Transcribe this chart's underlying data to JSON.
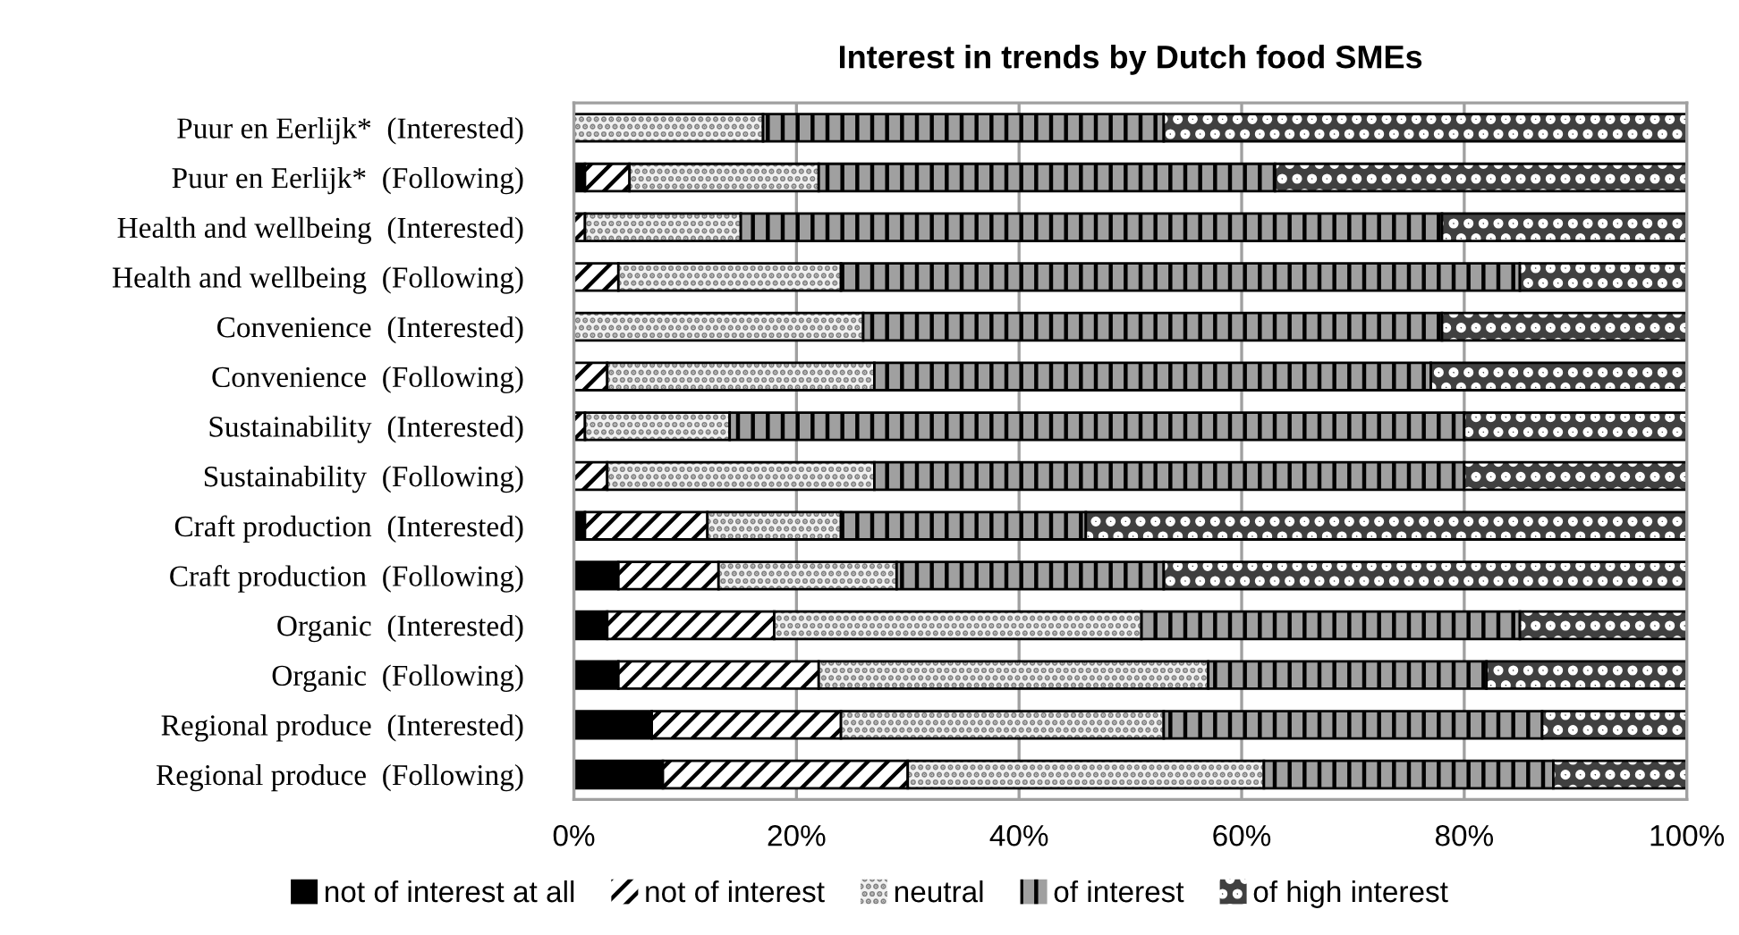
{
  "chart_data": {
    "type": "bar",
    "orientation": "horizontal",
    "stacked": true,
    "title": "Interest in trends by Dutch food SMEs",
    "categories": [
      "Puur en Eerlijk*  (Interested)",
      "Puur en Eerlijk*  (Following)",
      "Health and wellbeing  (Interested)",
      "Health and wellbeing  (Following)",
      "Convenience  (Interested)",
      "Convenience  (Following)",
      "Sustainability  (Interested)",
      "Sustainability  (Following)",
      "Craft production  (Interested)",
      "Craft production  (Following)",
      "Organic  (Interested)",
      "Organic  (Following)",
      "Regional produce  (Interested)",
      "Regional produce  (Following)"
    ],
    "series": [
      {
        "name": "not of interest at all",
        "color": "#000000",
        "values": [
          0,
          1,
          0,
          0,
          0,
          0,
          0,
          0,
          1,
          4,
          3,
          4,
          7,
          8
        ]
      },
      {
        "name": "not of interest",
        "color": "#ffffff",
        "values": [
          0,
          4,
          1,
          4,
          0,
          3,
          1,
          3,
          11,
          9,
          15,
          18,
          17,
          22
        ]
      },
      {
        "name": "neutral",
        "color": "#f0f0f0",
        "values": [
          17,
          17,
          14,
          20,
          26,
          24,
          13,
          24,
          12,
          16,
          33,
          35,
          29,
          32
        ]
      },
      {
        "name": "of interest",
        "color": "#a0a0a0",
        "values": [
          36,
          41,
          63,
          61,
          52,
          50,
          66,
          53,
          22,
          24,
          34,
          25,
          34,
          26
        ]
      },
      {
        "name": "of high interest",
        "color": "#404040",
        "values": [
          47,
          37,
          22,
          15,
          22,
          23,
          20,
          20,
          54,
          47,
          15,
          18,
          13,
          12
        ]
      }
    ],
    "xlim": [
      0,
      100
    ],
    "xticks": [
      {
        "value": 0,
        "label": "0%"
      },
      {
        "value": 20,
        "label": "20%"
      },
      {
        "value": 40,
        "label": "40%"
      },
      {
        "value": 60,
        "label": "60%"
      },
      {
        "value": 80,
        "label": "80%"
      },
      {
        "value": 100,
        "label": "100%"
      }
    ],
    "grid": "x",
    "legend": "bottom"
  }
}
